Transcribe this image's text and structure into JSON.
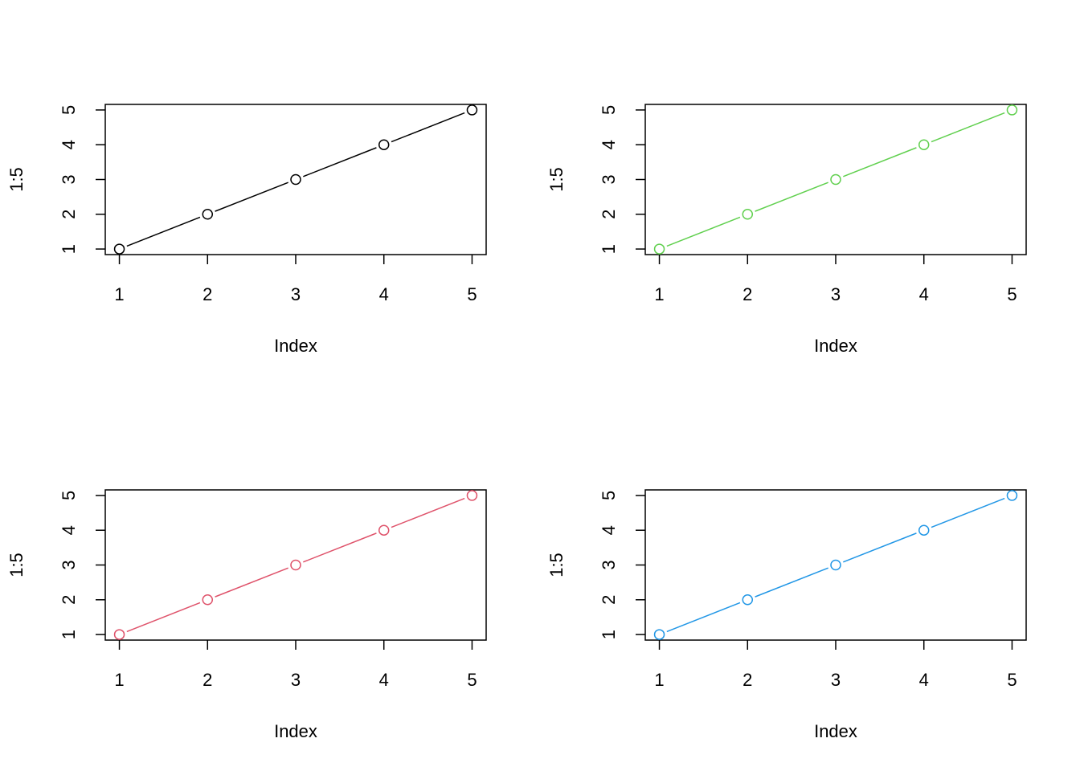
{
  "chart_data": [
    {
      "type": "line",
      "panel": "top-left",
      "x": [
        1,
        2,
        3,
        4,
        5
      ],
      "y": [
        1,
        2,
        3,
        4,
        5
      ],
      "xlabel": "Index",
      "ylabel": "1:5",
      "xticks": [
        "1",
        "2",
        "3",
        "4",
        "5"
      ],
      "yticks": [
        "1",
        "2",
        "3",
        "4",
        "5"
      ],
      "xlim": [
        0.84,
        5.16
      ],
      "ylim": [
        0.84,
        5.16
      ],
      "color": "#000000",
      "marker": "open-circle",
      "line_style": "both"
    },
    {
      "type": "line",
      "panel": "top-right",
      "x": [
        1,
        2,
        3,
        4,
        5
      ],
      "y": [
        1,
        2,
        3,
        4,
        5
      ],
      "xlabel": "Index",
      "ylabel": "1:5",
      "xticks": [
        "1",
        "2",
        "3",
        "4",
        "5"
      ],
      "yticks": [
        "1",
        "2",
        "3",
        "4",
        "5"
      ],
      "xlim": [
        0.84,
        5.16
      ],
      "ylim": [
        0.84,
        5.16
      ],
      "color": "#61D04F",
      "marker": "open-circle",
      "line_style": "both"
    },
    {
      "type": "line",
      "panel": "bottom-left",
      "x": [
        1,
        2,
        3,
        4,
        5
      ],
      "y": [
        1,
        2,
        3,
        4,
        5
      ],
      "xlabel": "Index",
      "ylabel": "1:5",
      "xticks": [
        "1",
        "2",
        "3",
        "4",
        "5"
      ],
      "yticks": [
        "1",
        "2",
        "3",
        "4",
        "5"
      ],
      "xlim": [
        0.84,
        5.16
      ],
      "ylim": [
        0.84,
        5.16
      ],
      "color": "#DF536B",
      "marker": "open-circle",
      "line_style": "both"
    },
    {
      "type": "line",
      "panel": "bottom-right",
      "x": [
        1,
        2,
        3,
        4,
        5
      ],
      "y": [
        1,
        2,
        3,
        4,
        5
      ],
      "xlabel": "Index",
      "ylabel": "1:5",
      "xticks": [
        "1",
        "2",
        "3",
        "4",
        "5"
      ],
      "yticks": [
        "1",
        "2",
        "3",
        "4",
        "5"
      ],
      "xlim": [
        0.84,
        5.16
      ],
      "ylim": [
        0.84,
        5.16
      ],
      "color": "#2297E6",
      "marker": "open-circle",
      "line_style": "both"
    }
  ]
}
